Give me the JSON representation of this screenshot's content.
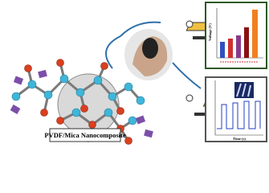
{
  "label": "PVDF/Mica Nanocomposite",
  "insets": [
    {
      "y_label": "Voltage (V)"
    },
    {
      "x_label": "Time (s)"
    }
  ]
}
